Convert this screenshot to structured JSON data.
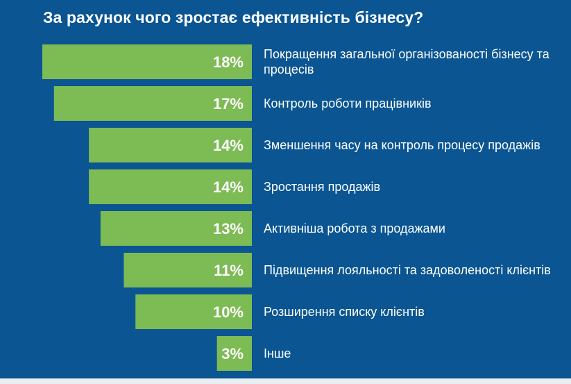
{
  "colors": {
    "background": "#0a5592",
    "bar": "#7dbb55",
    "text": "#ffffff",
    "bottom_strip": "#e9eef3"
  },
  "chart_data": {
    "type": "bar",
    "orientation": "horizontal",
    "title": "За рахунок чого зростає ефективність бізнесу?",
    "xlim": [
      0,
      18
    ],
    "categories": [
      "Покращення загальної організованості бізнесу та процесів",
      "Контроль роботи працівників",
      "Зменшення часу на контроль процесу продажів",
      "Зростання продажів",
      "Активніша робота з продажами",
      "Підвищення лояльності та задоволеності клієнтів",
      "Розширення списку клієнтів",
      "Інше"
    ],
    "values": [
      18,
      17,
      14,
      14,
      13,
      11,
      10,
      3
    ],
    "value_labels": [
      "18%",
      "17%",
      "14%",
      "14%",
      "13%",
      "11%",
      "10%",
      "3%"
    ],
    "data_labels": "inside-end",
    "grid": false,
    "legend": "none"
  }
}
